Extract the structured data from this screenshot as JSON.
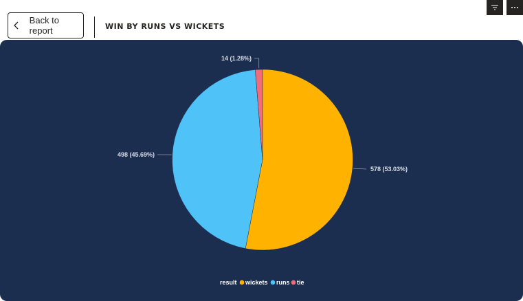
{
  "header": {
    "back_label": "Back to report",
    "visual_title": "WIN BY RUNS VS WICKETS"
  },
  "toolbar": {
    "icons": [
      "filter-icon",
      "more-options-icon"
    ]
  },
  "colors": {
    "panel_bg": "#1c2e4f",
    "wickets": "#ffb300",
    "runs": "#4fc3f7",
    "tie": "#f06c7a"
  },
  "chart_data": {
    "type": "pie",
    "title": "WIN BY RUNS VS WICKETS",
    "legend_title": "result",
    "legend_position": "bottom-center",
    "categories": [
      "wickets",
      "runs",
      "tie"
    ],
    "values": [
      578,
      498,
      14
    ],
    "percent_labels": [
      "578 (53.03%)",
      "498 (45.69%)",
      "14 (1.28%)"
    ],
    "colors": [
      "#ffb300",
      "#4fc3f7",
      "#f06c7a"
    ]
  }
}
